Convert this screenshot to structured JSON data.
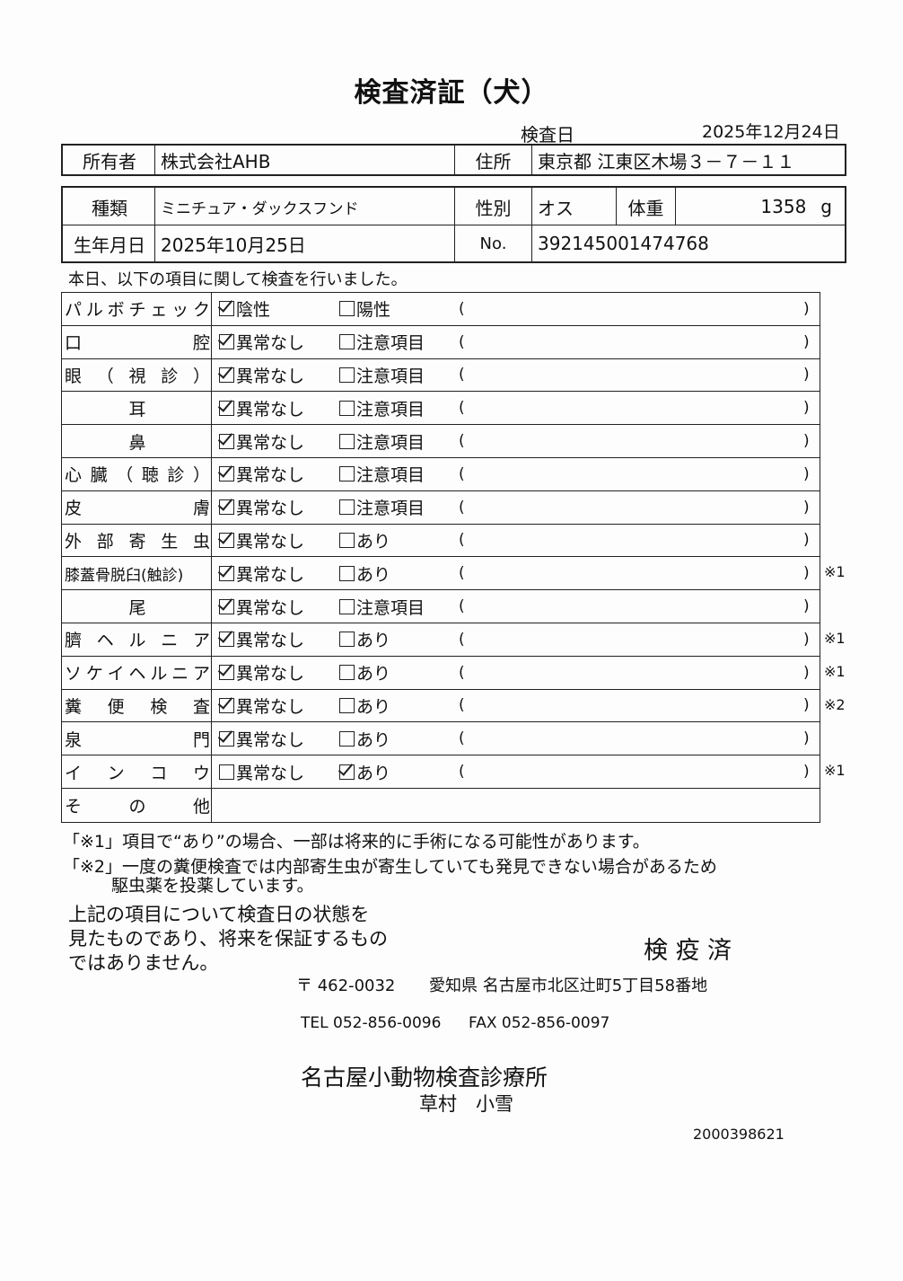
{
  "title": "検査済証（犬）",
  "exam_date_label": "検査日",
  "exam_date": "2025年12月24日",
  "owner": {
    "label": "所有者",
    "value": "株式会社AHB",
    "address_label": "住所",
    "address": "東京都 江東区木場３－７－１１"
  },
  "pet": {
    "breed_label": "種類",
    "breed": "ミニチュア・ダックスフンド",
    "sex_label": "性別",
    "sex": "オス",
    "weight_label": "体重",
    "weight": "1358",
    "weight_unit": "g",
    "birth_label": "生年月日",
    "birth": "2025年10月25日",
    "no_label": "No.",
    "no": "392145001474768"
  },
  "intro": "本日、以下の項目に関して検査を行いました。",
  "items": [
    {
      "label": "パルボチェック",
      "opt1": "陰性",
      "opt2": "陽性",
      "checked": 1,
      "mark": ""
    },
    {
      "label": "口腔",
      "opt1": "異常なし",
      "opt2": "注意項目",
      "checked": 1,
      "mark": ""
    },
    {
      "label": "眼（視診）",
      "opt1": "異常なし",
      "opt2": "注意項目",
      "checked": 1,
      "mark": ""
    },
    {
      "label": "耳",
      "opt1": "異常なし",
      "opt2": "注意項目",
      "checked": 1,
      "mark": ""
    },
    {
      "label": "鼻",
      "opt1": "異常なし",
      "opt2": "注意項目",
      "checked": 1,
      "mark": ""
    },
    {
      "label": "心臓（聴診）",
      "opt1": "異常なし",
      "opt2": "注意項目",
      "checked": 1,
      "mark": ""
    },
    {
      "label": "皮膚",
      "opt1": "異常なし",
      "opt2": "注意項目",
      "checked": 1,
      "mark": ""
    },
    {
      "label": "外部寄生虫",
      "opt1": "異常なし",
      "opt2": "あり",
      "checked": 1,
      "mark": ""
    },
    {
      "label": "膝蓋骨脱臼(触診)",
      "opt1": "異常なし",
      "opt2": "あり",
      "checked": 1,
      "mark": "※1"
    },
    {
      "label": "尾",
      "opt1": "異常なし",
      "opt2": "注意項目",
      "checked": 1,
      "mark": ""
    },
    {
      "label": "臍ヘルニア",
      "opt1": "異常なし",
      "opt2": "あり",
      "checked": 1,
      "mark": "※1"
    },
    {
      "label": "ソケイヘルニア",
      "opt1": "異常なし",
      "opt2": "あり",
      "checked": 1,
      "mark": "※1"
    },
    {
      "label": "糞便検査",
      "opt1": "異常なし",
      "opt2": "あり",
      "checked": 1,
      "mark": "※2"
    },
    {
      "label": "泉門",
      "opt1": "異常なし",
      "opt2": "あり",
      "checked": 1,
      "mark": ""
    },
    {
      "label": "インコウ",
      "opt1": "異常なし",
      "opt2": "あり",
      "checked": 2,
      "mark": "※1"
    },
    {
      "label": "その他",
      "opt1": "",
      "opt2": "",
      "checked": 0,
      "mark": ""
    }
  ],
  "notes": {
    "n1": "「※1」項目で“あり”の場合、一部は将来的に手術になる可能性があります。",
    "n2": "「※2」一度の糞便検査では内部寄生虫が寄生していても発見できない場合があるため",
    "n2b": "駆虫薬を投薬しています。"
  },
  "disclaimer": [
    "上記の項目について検査日の状態を",
    "見たものであり、将来を保証するもの",
    "ではありません。"
  ],
  "stamp": "検 疫 済",
  "clinic": {
    "postal": "〒 462-0032",
    "address": "愛知県 名古屋市北区辻町5丁目58番地",
    "tel": "TEL 052-856-0096",
    "fax": "FAX 052-856-0097",
    "name": "名古屋小動物検査診療所",
    "person": "草村　小雪",
    "code": "2000398621"
  }
}
